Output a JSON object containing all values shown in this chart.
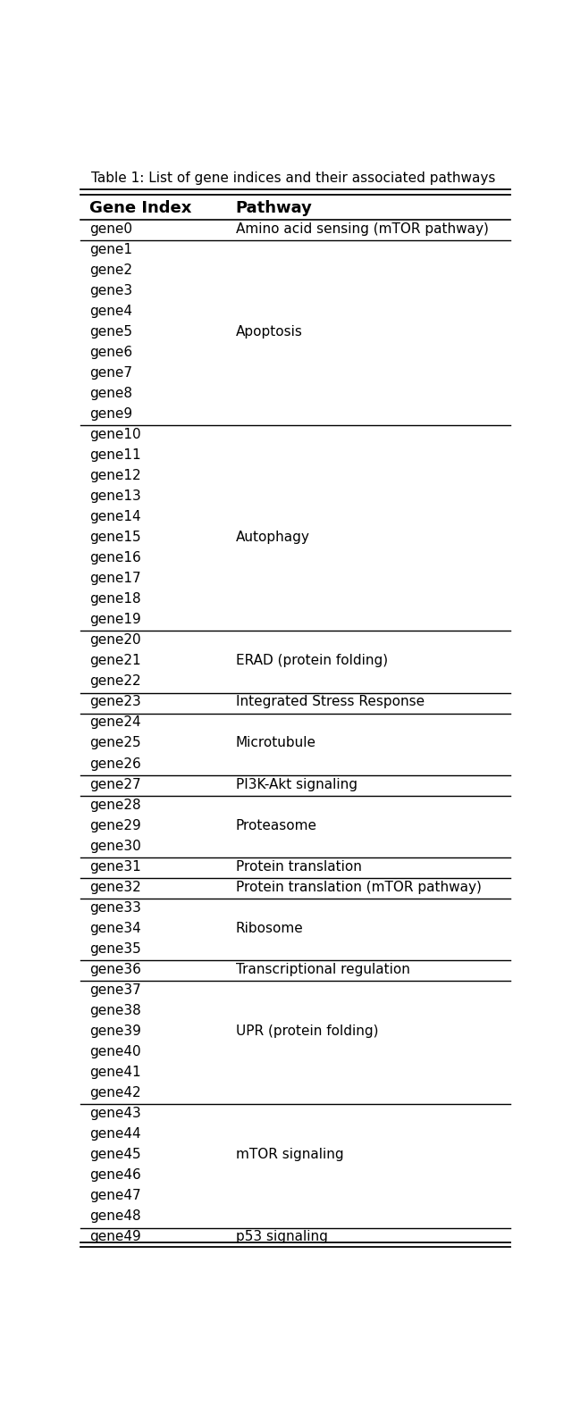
{
  "title": "Table 1: List of gene indices and their associated pathways",
  "col1_header": "Gene Index",
  "col2_header": "Pathway",
  "rows": [
    [
      "gene0",
      "Amino acid sensing (mTOR pathway)"
    ],
    [
      "gene1",
      ""
    ],
    [
      "gene2",
      ""
    ],
    [
      "gene3",
      ""
    ],
    [
      "gene4",
      ""
    ],
    [
      "gene5",
      "Apoptosis"
    ],
    [
      "gene6",
      ""
    ],
    [
      "gene7",
      ""
    ],
    [
      "gene8",
      ""
    ],
    [
      "gene9",
      ""
    ],
    [
      "gene10",
      ""
    ],
    [
      "gene11",
      ""
    ],
    [
      "gene12",
      ""
    ],
    [
      "gene13",
      ""
    ],
    [
      "gene14",
      ""
    ],
    [
      "gene15",
      "Autophagy"
    ],
    [
      "gene16",
      ""
    ],
    [
      "gene17",
      ""
    ],
    [
      "gene18",
      ""
    ],
    [
      "gene19",
      ""
    ],
    [
      "gene20",
      ""
    ],
    [
      "gene21",
      "ERAD (protein folding)"
    ],
    [
      "gene22",
      ""
    ],
    [
      "gene23",
      "Integrated Stress Response"
    ],
    [
      "gene24",
      ""
    ],
    [
      "gene25",
      "Microtubule"
    ],
    [
      "gene26",
      ""
    ],
    [
      "gene27",
      "PI3K-Akt signaling"
    ],
    [
      "gene28",
      ""
    ],
    [
      "gene29",
      "Proteasome"
    ],
    [
      "gene30",
      ""
    ],
    [
      "gene31",
      "Protein translation"
    ],
    [
      "gene32",
      "Protein translation (mTOR pathway)"
    ],
    [
      "gene33",
      ""
    ],
    [
      "gene34",
      "Ribosome"
    ],
    [
      "gene35",
      ""
    ],
    [
      "gene36",
      "Transcriptional regulation"
    ],
    [
      "gene37",
      ""
    ],
    [
      "gene38",
      ""
    ],
    [
      "gene39",
      "UPR (protein folding)"
    ],
    [
      "gene40",
      ""
    ],
    [
      "gene41",
      ""
    ],
    [
      "gene42",
      ""
    ],
    [
      "gene43",
      ""
    ],
    [
      "gene44",
      ""
    ],
    [
      "gene45",
      "mTOR signaling"
    ],
    [
      "gene46",
      ""
    ],
    [
      "gene47",
      ""
    ],
    [
      "gene48",
      ""
    ],
    [
      "gene49",
      "p53 signaling"
    ]
  ],
  "group_separators_after": [
    0,
    9,
    19,
    22,
    23,
    26,
    27,
    30,
    31,
    32,
    35,
    36,
    42,
    48
  ],
  "background_color": "#ffffff",
  "text_color": "#000000",
  "font_size": 11,
  "header_font_size": 13,
  "title_font_size": 11
}
